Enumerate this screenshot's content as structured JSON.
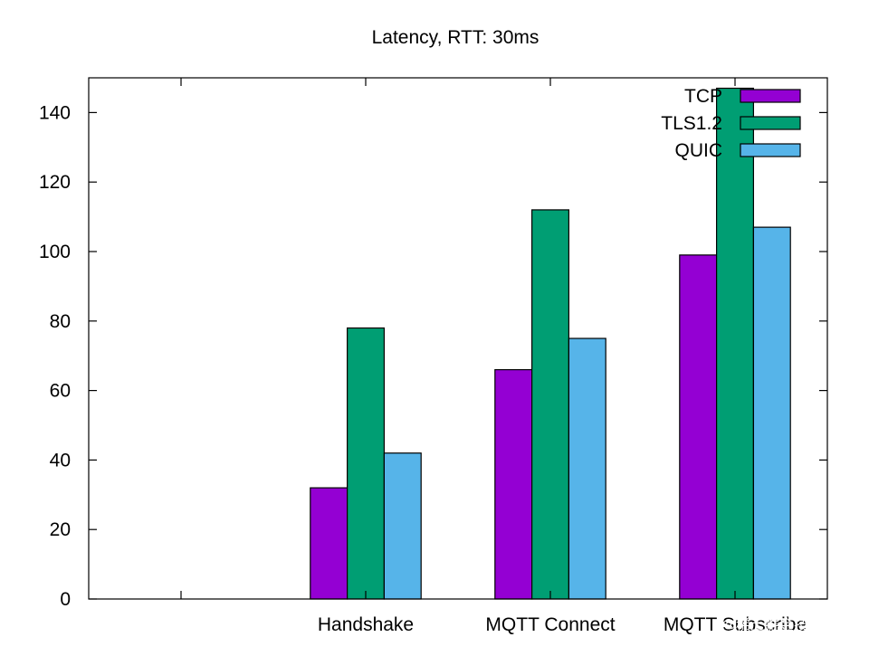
{
  "chart_data": {
    "type": "bar",
    "title": "Latency, RTT: 30ms",
    "xlabel": "",
    "ylabel": "",
    "categories": [
      "Handshake",
      "MQTT Connect",
      "MQTT Subscribe"
    ],
    "series": [
      {
        "name": "TCP",
        "color": "#9400d3",
        "values": [
          32,
          66,
          99
        ]
      },
      {
        "name": "TLS1.2",
        "color": "#009e73",
        "values": [
          78,
          112,
          147
        ]
      },
      {
        "name": "QUIC",
        "color": "#56b4e9",
        "values": [
          42,
          75,
          107
        ]
      }
    ],
    "ylim": [
      0,
      150
    ],
    "yticks": [
      0,
      20,
      40,
      60,
      80,
      100,
      120,
      140
    ],
    "xrange": [
      -1.5,
      2.5
    ],
    "grid": false,
    "legend_position": "top-right"
  },
  "watermark": {
    "text": "@稀土掘金技术社区"
  }
}
